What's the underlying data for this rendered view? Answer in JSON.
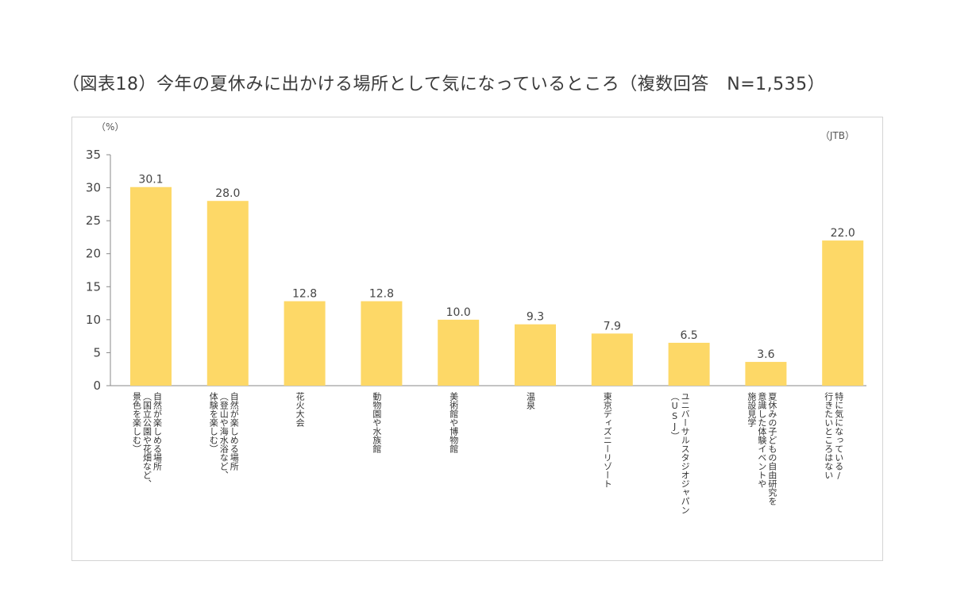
{
  "title": "（図表18）今年の夏休みに出かける場所として気になっているところ（複数回答　N=1,535）",
  "chart_data": {
    "type": "bar",
    "title": "（図表18）今年の夏休みに出かける場所として気になっているところ（複数回答　N=1,535）",
    "ylabel": "（%）",
    "source": "（JTB）",
    "ylim": [
      0,
      35
    ],
    "yticks": [
      0,
      5,
      10,
      15,
      20,
      25,
      30,
      35
    ],
    "bar_color": "#fdd867",
    "categories": [
      [
        "自然が楽しめる場所",
        "（国立公園や花畑など、",
        "景色を楽しむ）"
      ],
      [
        "自然が楽しめる場所",
        "（登山や海水浴など、",
        "体験を楽しむ）"
      ],
      [
        "花火大会"
      ],
      [
        "動物園や水族館"
      ],
      [
        "美術館や博物館"
      ],
      [
        "温泉"
      ],
      [
        "東京ディズニーリゾート"
      ],
      [
        "ユニバーサルスタジオジャパン",
        "（USJ）"
      ],
      [
        "夏休みの子どもの自由研究を",
        "意識した体験イベントや",
        "施設見学"
      ],
      [
        "特に気になっている/",
        "行きたいところはない"
      ]
    ],
    "values": [
      30.1,
      28.0,
      12.8,
      12.8,
      10.0,
      9.3,
      7.9,
      6.5,
      3.6,
      22.0
    ],
    "value_labels": [
      "30.1",
      "28.0",
      "12.8",
      "12.8",
      "10.0",
      "9.3",
      "7.9",
      "6.5",
      "3.6",
      "22.0"
    ]
  }
}
